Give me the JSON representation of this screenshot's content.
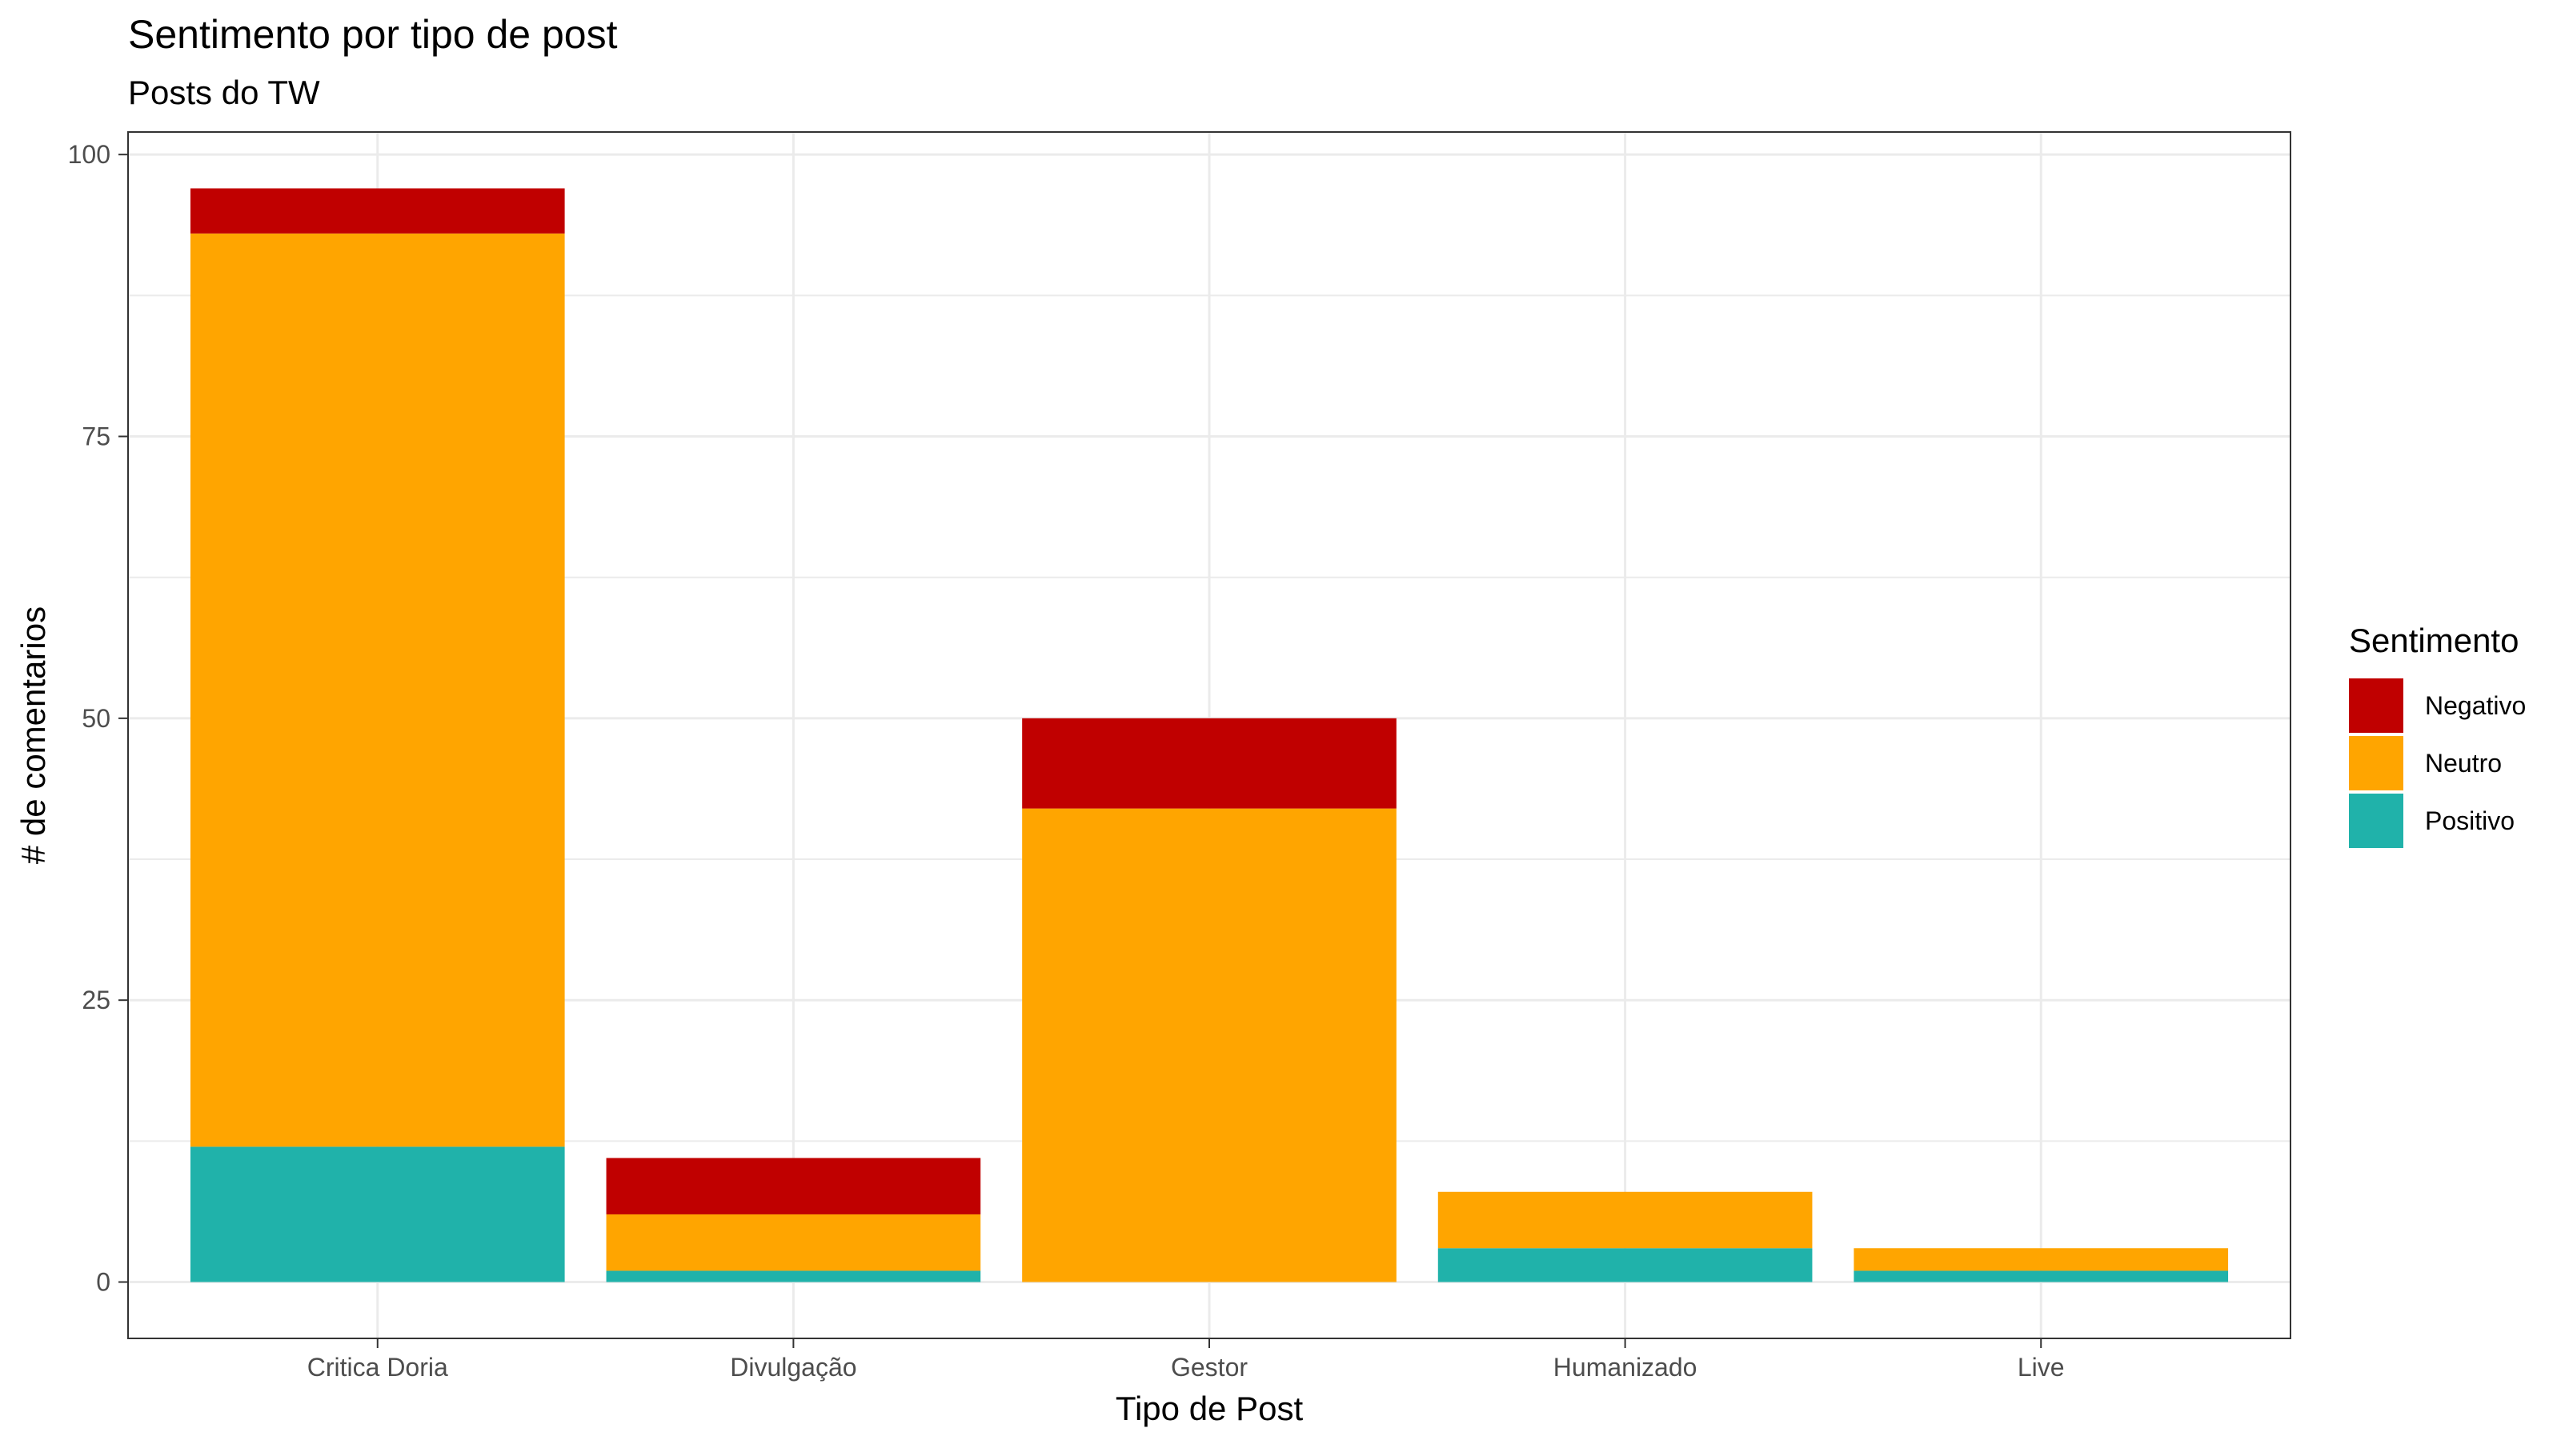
{
  "chart_data": {
    "type": "bar",
    "stacked": true,
    "title": "Sentimento por tipo de post",
    "subtitle": "Posts do  TW",
    "xlabel": "Tipo de Post",
    "ylabel": "# de comentarios",
    "categories": [
      "Critica Doria",
      "Divulgação",
      "Gestor",
      "Humanizado",
      "Live"
    ],
    "series": [
      {
        "name": "Positivo",
        "color": "#20B2AA",
        "values": [
          12,
          1,
          0,
          3,
          1
        ]
      },
      {
        "name": "Neutro",
        "color": "#FFA500",
        "values": [
          81,
          5,
          42,
          5,
          2
        ]
      },
      {
        "name": "Negativo",
        "color": "#C00000",
        "values": [
          4,
          5,
          8,
          0,
          0
        ]
      }
    ],
    "ylim": [
      -5,
      102
    ],
    "yticks": [
      0,
      25,
      50,
      75,
      100
    ],
    "grid": true,
    "legend": {
      "title": "Sentimento",
      "position": "right",
      "order": [
        "Negativo",
        "Neutro",
        "Positivo"
      ]
    }
  }
}
